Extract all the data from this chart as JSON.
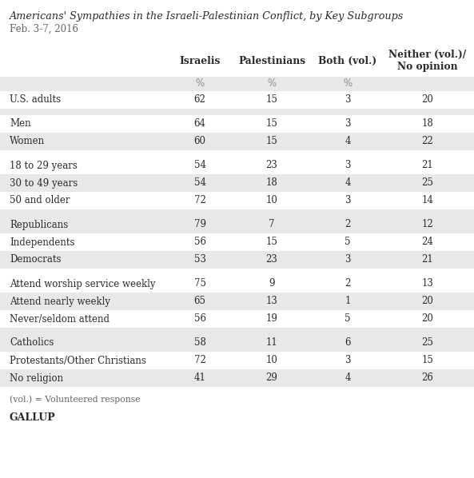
{
  "title": "Americans' Sympathies in the Israeli-Palestinian Conflict, by Key Subgroups",
  "subtitle": "Feb. 3-7, 2016",
  "col_headers": [
    "Israelis",
    "Palestinians",
    "Both (vol.)",
    "Neither (vol.)/\nNo opinion"
  ],
  "pct_row": [
    "%",
    "%",
    "%",
    ""
  ],
  "rows": [
    {
      "label": "U.S. adults",
      "values": [
        "62",
        "15",
        "3",
        "20"
      ],
      "bg": "#ffffff",
      "gap": false
    },
    {
      "label": "",
      "values": [],
      "bg": "#e8e8e8",
      "gap": true
    },
    {
      "label": "Men",
      "values": [
        "64",
        "15",
        "3",
        "18"
      ],
      "bg": "#ffffff",
      "gap": false
    },
    {
      "label": "Women",
      "values": [
        "60",
        "15",
        "4",
        "22"
      ],
      "bg": "#e8e8e8",
      "gap": false
    },
    {
      "label": "",
      "values": [],
      "bg": "#ffffff",
      "gap": true
    },
    {
      "label": "18 to 29 years",
      "values": [
        "54",
        "23",
        "3",
        "21"
      ],
      "bg": "#ffffff",
      "gap": false
    },
    {
      "label": "30 to 49 years",
      "values": [
        "54",
        "18",
        "4",
        "25"
      ],
      "bg": "#e8e8e8",
      "gap": false
    },
    {
      "label": "50 and older",
      "values": [
        "72",
        "10",
        "3",
        "14"
      ],
      "bg": "#ffffff",
      "gap": false
    },
    {
      "label": "",
      "values": [],
      "bg": "#e8e8e8",
      "gap": true
    },
    {
      "label": "Republicans",
      "values": [
        "79",
        "7",
        "2",
        "12"
      ],
      "bg": "#e8e8e8",
      "gap": false
    },
    {
      "label": "Independents",
      "values": [
        "56",
        "15",
        "5",
        "24"
      ],
      "bg": "#ffffff",
      "gap": false
    },
    {
      "label": "Democrats",
      "values": [
        "53",
        "23",
        "3",
        "21"
      ],
      "bg": "#e8e8e8",
      "gap": false
    },
    {
      "label": "",
      "values": [],
      "bg": "#ffffff",
      "gap": true
    },
    {
      "label": "Attend worship service weekly",
      "values": [
        "75",
        "9",
        "2",
        "13"
      ],
      "bg": "#ffffff",
      "gap": false
    },
    {
      "label": "Attend nearly weekly",
      "values": [
        "65",
        "13",
        "1",
        "20"
      ],
      "bg": "#e8e8e8",
      "gap": false
    },
    {
      "label": "Never/seldom attend",
      "values": [
        "56",
        "19",
        "5",
        "20"
      ],
      "bg": "#ffffff",
      "gap": false
    },
    {
      "label": "",
      "values": [],
      "bg": "#e8e8e8",
      "gap": true
    },
    {
      "label": "Catholics",
      "values": [
        "58",
        "11",
        "6",
        "25"
      ],
      "bg": "#e8e8e8",
      "gap": false
    },
    {
      "label": "Protestants/Other Christians",
      "values": [
        "72",
        "10",
        "3",
        "15"
      ],
      "bg": "#ffffff",
      "gap": false
    },
    {
      "label": "No religion",
      "values": [
        "41",
        "29",
        "4",
        "26"
      ],
      "bg": "#e8e8e8",
      "gap": false
    }
  ],
  "footer": "(vol.) = Volunteered response",
  "source": "GALLUP",
  "bg_color": "#ffffff",
  "stripe_color": "#e8e8e8",
  "text_color": "#2b2b2b",
  "label_color": "#2b2b2b",
  "pct_color": "#888888",
  "title_color": "#2b2b2b",
  "subtitle_color": "#666666"
}
